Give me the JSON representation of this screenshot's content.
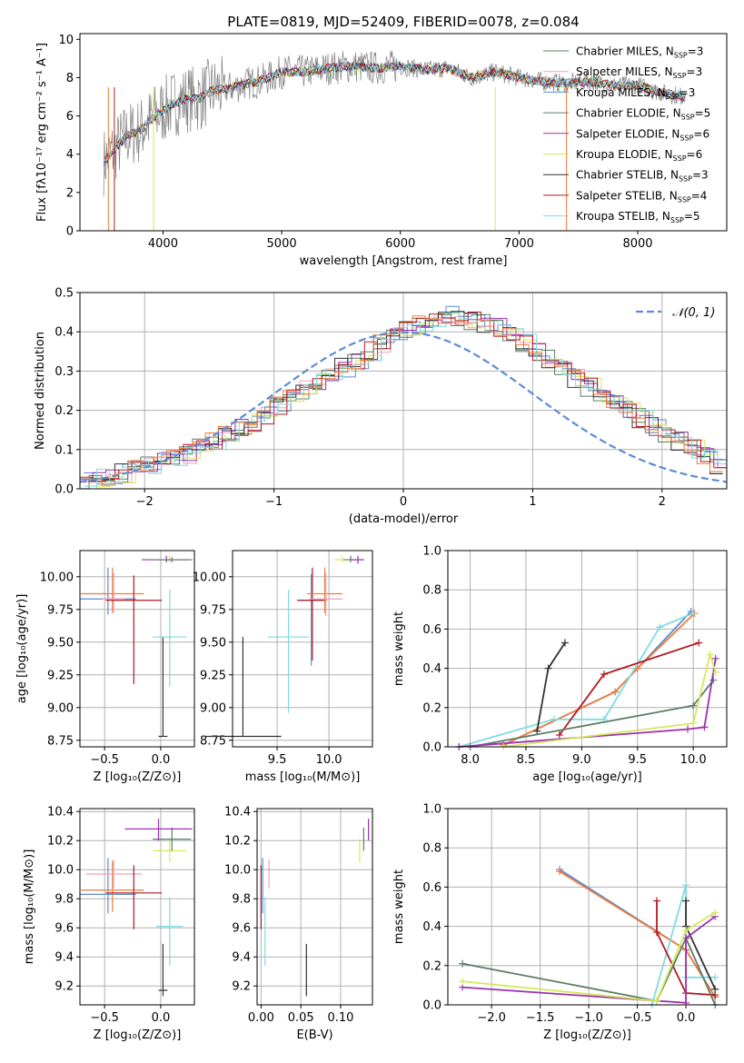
{
  "chart_data": [
    {
      "type": "line",
      "title": "PLATE=0819, MJD=52409, FIBERID=0078, z=0.084",
      "xlabel": "wavelength [Angstrom, rest frame]",
      "ylabel": "Flux [fλ10⁻¹⁷ erg cm⁻² s⁻¹ A⁻¹]",
      "xlim": [
        3300,
        8750
      ],
      "ylim": [
        0,
        10.3
      ],
      "xticks": [
        4000,
        5000,
        6000,
        7000,
        8000
      ],
      "yticks": [
        0,
        2,
        4,
        6,
        8,
        10
      ],
      "grid": false,
      "legend_position": "top-right",
      "series": [
        {
          "name": "Chabrier MILES, N_SSP=3",
          "color": "#5b7f62"
        },
        {
          "name": "Salpeter MILES, N_SSP=3",
          "color": "#f29fba"
        },
        {
          "name": "Kroupa MILES, N_SSP=3",
          "color": "#5b8cd6"
        },
        {
          "name": "Chabrier ELODIE, N_SSP=5",
          "color": "#5c7c66"
        },
        {
          "name": "Salpeter ELODIE, N_SSP=6",
          "color": "#9b30b0"
        },
        {
          "name": "Kroupa ELODIE, N_SSP=6",
          "color": "#d6e85a"
        },
        {
          "name": "Chabrier STELIB, N_SSP=3",
          "color": "#333333"
        },
        {
          "name": "Salpeter STELIB, N_SSP=4",
          "color": "#b0191e"
        },
        {
          "name": "Kroupa STELIB, N_SSP=5",
          "color": "#7fdbe3"
        }
      ],
      "data_curve": {
        "color": "#808080",
        "x": [
          3500,
          3600,
          3700,
          3800,
          3900,
          4000,
          4100,
          4200,
          4300,
          4400,
          4500,
          4600,
          4700,
          4800,
          4900,
          5000,
          5200,
          5400,
          5600,
          5800,
          6000,
          6200,
          6400,
          6600,
          6800,
          7000,
          7200,
          7400,
          7600,
          7800,
          8000,
          8200,
          8400
        ],
        "y": [
          3.6,
          4.3,
          5.0,
          5.2,
          5.8,
          6.3,
          6.7,
          6.9,
          6.9,
          7.3,
          7.4,
          7.5,
          7.7,
          7.8,
          8.0,
          8.3,
          8.3,
          8.5,
          8.6,
          8.5,
          8.6,
          8.4,
          8.5,
          8.0,
          8.3,
          8.0,
          7.8,
          7.7,
          7.8,
          7.6,
          7.6,
          7.2,
          7.0
        ]
      }
    },
    {
      "type": "line",
      "xlabel": "(data-model)/error",
      "ylabel": "Normed distribution",
      "xlim": [
        -2.5,
        2.5
      ],
      "ylim": [
        0,
        0.5
      ],
      "xticks": [
        -2,
        -1,
        0,
        1,
        2
      ],
      "yticks": [
        0.0,
        0.1,
        0.2,
        0.3,
        0.4,
        0.5
      ],
      "grid": true,
      "legend_position": "top-right",
      "legend": [
        "𝒩(0, 1)"
      ],
      "gaussian": {
        "mu": 0,
        "sigma": 1,
        "color": "#5b8cd6"
      },
      "histogram_bins": {
        "start": -2.5,
        "width": 0.1
      },
      "histogram_base": [
        0.02,
        0.03,
        0.03,
        0.04,
        0.05,
        0.06,
        0.07,
        0.08,
        0.09,
        0.11,
        0.12,
        0.14,
        0.16,
        0.17,
        0.19,
        0.21,
        0.23,
        0.25,
        0.27,
        0.29,
        0.31,
        0.33,
        0.35,
        0.37,
        0.39,
        0.41,
        0.42,
        0.43,
        0.44,
        0.44,
        0.43,
        0.42,
        0.41,
        0.39,
        0.37,
        0.35,
        0.33,
        0.3,
        0.28,
        0.26,
        0.24,
        0.22,
        0.2,
        0.18,
        0.16,
        0.14,
        0.12,
        0.1,
        0.08,
        0.06
      ],
      "histogram_colors": [
        "#5b7f62",
        "#f29fba",
        "#5b8cd6",
        "#5c7c66",
        "#9b30b0",
        "#d6e85a",
        "#333333",
        "#b0191e",
        "#7fdbe3",
        "#f07a3a"
      ]
    },
    {
      "type": "scatter",
      "xlabel": "Z [log₁₀(Z/Z⊙)]",
      "ylabel": "age  [log₁₀(age/yr)]",
      "xlim": [
        -0.72,
        0.3
      ],
      "ylim": [
        8.7,
        10.2
      ],
      "xticks": [
        -0.5,
        0.0
      ],
      "yticks": [
        8.75,
        9.0,
        9.25,
        9.5,
        9.75,
        10.0
      ],
      "grid": true,
      "points": [
        {
          "x": -0.47,
          "y": 9.83,
          "xerr": 0.25,
          "yerr": [
            0.12,
            0.24
          ],
          "color": "#5b8cd6"
        },
        {
          "x": -0.43,
          "y": 9.87,
          "xerr": 0.28,
          "yerr": [
            0.15,
            0.2
          ],
          "color": "#f07a3a"
        },
        {
          "x": -0.42,
          "y": 9.83,
          "xerr": 0.1,
          "yerr": [
            0.1,
            0.2
          ],
          "color": "#f29fba"
        },
        {
          "x": -0.24,
          "y": 9.82,
          "xerr": 0.25,
          "yerr": [
            0.64,
            0.19
          ],
          "color": "#b0191e"
        },
        {
          "x": 0.02,
          "y": 8.78,
          "xerr": 0.04,
          "yerr": [
            0.0,
            0.76
          ],
          "color": "#333333"
        },
        {
          "x": 0.08,
          "y": 9.54,
          "xerr": 0.15,
          "yerr": [
            0.38,
            0.36
          ],
          "color": "#7fdbe3"
        },
        {
          "x": 0.08,
          "y": 10.13,
          "xerr": 0.15,
          "yerr": [
            0.02,
            0.03
          ],
          "color": "#d6e85a"
        },
        {
          "x": 0.05,
          "y": 10.13,
          "xerr": 0.22,
          "yerr": [
            0.02,
            0.03
          ],
          "color": "#9b30b0"
        },
        {
          "x": 0.1,
          "y": 10.13,
          "xerr": 0.18,
          "yerr": [
            0.02,
            0.02
          ],
          "color": "#5c7c66"
        }
      ]
    },
    {
      "type": "scatter",
      "xlabel": "mass [log₁₀(M/M⊙)]",
      "ylabel": "",
      "xlim": [
        9.07,
        10.42
      ],
      "ylim": [
        8.7,
        10.2
      ],
      "xticks": [
        9.5,
        10.0
      ],
      "yticks": [
        8.75,
        9.0,
        9.25,
        9.5,
        9.75,
        10.0
      ],
      "grid": true,
      "points": [
        {
          "x": 9.17,
          "y": 8.78,
          "xerr": 0.37,
          "yerr": [
            0.0,
            0.76
          ],
          "color": "#333333"
        },
        {
          "x": 9.61,
          "y": 9.54,
          "xerr": 0.2,
          "yerr": [
            0.58,
            0.36
          ],
          "color": "#7fdbe3"
        },
        {
          "x": 9.83,
          "y": 9.82,
          "xerr": 0.14,
          "yerr": [
            0.5,
            0.2
          ],
          "color": "#5b8cd6"
        },
        {
          "x": 9.84,
          "y": 9.82,
          "xerr": 0.14,
          "yerr": [
            0.46,
            0.25
          ],
          "color": "#b0191e"
        },
        {
          "x": 9.96,
          "y": 9.87,
          "xerr": 0.17,
          "yerr": [
            0.15,
            0.2
          ],
          "color": "#f07a3a"
        },
        {
          "x": 9.97,
          "y": 9.83,
          "xerr": 0.16,
          "yerr": [
            0.13,
            0.2
          ],
          "color": "#f29fba"
        },
        {
          "x": 10.13,
          "y": 10.13,
          "xerr": 0.08,
          "yerr": [
            0.02,
            0.03
          ],
          "color": "#d6e85a"
        },
        {
          "x": 10.21,
          "y": 10.13,
          "xerr": 0.07,
          "yerr": [
            0.02,
            0.03
          ],
          "color": "#5c7c66"
        },
        {
          "x": 10.28,
          "y": 10.13,
          "xerr": 0.06,
          "yerr": [
            0.03,
            0.03
          ],
          "color": "#9b30b0"
        }
      ]
    },
    {
      "type": "line",
      "xlabel": "age  [log₁₀(age/yr)]",
      "ylabel": "mass weight",
      "xlim": [
        7.8,
        10.3
      ],
      "ylim": [
        0,
        1
      ],
      "xticks": [
        8.0,
        8.5,
        9.0,
        9.5,
        10.0
      ],
      "yticks": [
        0.0,
        0.2,
        0.4,
        0.6,
        0.8,
        1.0
      ],
      "grid": true,
      "series": [
        {
          "color": "#5b8cd6",
          "x": [
            8.3,
            9.3,
            9.5,
            9.98
          ],
          "y": [
            0.01,
            0.28,
            0.4,
            0.69
          ]
        },
        {
          "color": "#f07a3a",
          "x": [
            8.3,
            9.3,
            9.5,
            10.01
          ],
          "y": [
            0.01,
            0.28,
            0.4,
            0.68
          ]
        },
        {
          "color": "#7fdbe3",
          "x": [
            7.9,
            8.75,
            9.2,
            9.7,
            10.0
          ],
          "y": [
            0.0,
            0.14,
            0.14,
            0.61,
            0.68
          ]
        },
        {
          "color": "#b0191e",
          "x": [
            8.8,
            9.2,
            10.05
          ],
          "y": [
            0.06,
            0.37,
            0.53
          ]
        },
        {
          "color": "#333333",
          "x": [
            8.6,
            8.7,
            8.85
          ],
          "y": [
            0.08,
            0.4,
            0.53
          ]
        },
        {
          "color": "#5c7c66",
          "x": [
            8.0,
            10.0,
            10.18
          ],
          "y": [
            0.0,
            0.21,
            0.34
          ]
        },
        {
          "color": "#9b30b0",
          "x": [
            7.9,
            9.95,
            10.1,
            10.2
          ],
          "y": [
            0.0,
            0.09,
            0.1,
            0.45
          ]
        },
        {
          "color": "#d6e85a",
          "x": [
            8.3,
            10.0,
            10.15,
            10.2
          ],
          "y": [
            0.0,
            0.12,
            0.47,
            0.38
          ]
        }
      ]
    },
    {
      "type": "scatter",
      "xlabel": "Z [log₁₀(Z/Z⊙)]",
      "ylabel": "mass [log₁₀(M/M⊙)]",
      "xlim": [
        -0.72,
        0.3
      ],
      "ylim": [
        9.07,
        10.42
      ],
      "xticks": [
        -0.5,
        0.0
      ],
      "yticks": [
        9.2,
        9.4,
        9.6,
        9.8,
        10.0,
        10.2,
        10.4
      ],
      "grid": true,
      "points": [
        {
          "x": -0.47,
          "y": 9.83,
          "xerr": 0.25,
          "yerr": [
            0.13,
            0.25
          ],
          "color": "#5b8cd6"
        },
        {
          "x": -0.43,
          "y": 9.86,
          "xerr": 0.28,
          "yerr": [
            0.15,
            0.2
          ],
          "color": "#f07a3a"
        },
        {
          "x": -0.42,
          "y": 9.97,
          "xerr": 0.25,
          "yerr": [
            0.1,
            0.1
          ],
          "color": "#f29fba"
        },
        {
          "x": -0.24,
          "y": 9.84,
          "xerr": 0.25,
          "yerr": [
            0.25,
            0.19
          ],
          "color": "#b0191e"
        },
        {
          "x": 0.02,
          "y": 9.17,
          "xerr": 0.04,
          "yerr": [
            0.04,
            0.32
          ],
          "color": "#333333"
        },
        {
          "x": 0.08,
          "y": 9.61,
          "xerr": 0.12,
          "yerr": [
            0.27,
            0.2
          ],
          "color": "#7fdbe3"
        },
        {
          "x": 0.08,
          "y": 10.13,
          "xerr": 0.15,
          "yerr": [
            0.08,
            0.08
          ],
          "color": "#d6e85a"
        },
        {
          "x": 0.1,
          "y": 10.21,
          "xerr": 0.17,
          "yerr": [
            0.08,
            0.08
          ],
          "color": "#5c7c66"
        },
        {
          "x": -0.02,
          "y": 10.28,
          "xerr": 0.3,
          "yerr": [
            0.08,
            0.07
          ],
          "color": "#9b30b0"
        }
      ]
    },
    {
      "type": "scatter",
      "xlabel": "E(B-V)",
      "ylabel": "",
      "xlim": [
        -0.005,
        0.14
      ],
      "ylim": [
        9.07,
        10.42
      ],
      "xticks": [
        0.0,
        0.05,
        0.1
      ],
      "yticks": [
        9.2,
        9.4,
        9.6,
        9.8,
        10.0,
        10.2,
        10.4
      ],
      "grid": true,
      "points": [
        {
          "x": 0.0,
          "y": 9.84,
          "xerr": 0.0,
          "yerr": [
            0.25,
            0.19
          ],
          "color": "#b0191e"
        },
        {
          "x": 0.002,
          "y": 9.83,
          "xerr": 0.0,
          "yerr": [
            0.13,
            0.25
          ],
          "color": "#5b8cd6"
        },
        {
          "x": 0.005,
          "y": 9.61,
          "xerr": 0.0,
          "yerr": [
            0.27,
            0.2
          ],
          "color": "#7fdbe3"
        },
        {
          "x": 0.01,
          "y": 9.97,
          "xerr": 0.0,
          "yerr": [
            0.1,
            0.1
          ],
          "color": "#f29fba"
        },
        {
          "x": 0.057,
          "y": 9.17,
          "xerr": 0.0,
          "yerr": [
            0.04,
            0.32
          ],
          "color": "#333333"
        },
        {
          "x": 0.124,
          "y": 10.13,
          "xerr": 0.0,
          "yerr": [
            0.08,
            0.08
          ],
          "color": "#d6e85a"
        },
        {
          "x": 0.129,
          "y": 10.21,
          "xerr": 0.0,
          "yerr": [
            0.08,
            0.08
          ],
          "color": "#5c7c66"
        },
        {
          "x": 0.135,
          "y": 10.28,
          "xerr": 0.0,
          "yerr": [
            0.08,
            0.07
          ],
          "color": "#9b30b0"
        }
      ]
    },
    {
      "type": "line",
      "xlabel": "Z [log₁₀(Z/Z⊙)]",
      "ylabel": "mass weight",
      "xlim": [
        -2.45,
        0.42
      ],
      "ylim": [
        0,
        1
      ],
      "xticks": [
        -2.0,
        -1.5,
        -1.0,
        -0.5,
        0.0
      ],
      "yticks": [
        0.0,
        0.2,
        0.4,
        0.6,
        0.8,
        1.0
      ],
      "grid": true,
      "series": [
        {
          "color": "#5b8cd6",
          "x": [
            -1.3,
            0.0,
            0.3
          ],
          "y": [
            0.69,
            0.28,
            0.04
          ]
        },
        {
          "color": "#f07a3a",
          "x": [
            -1.3,
            0.0,
            0.3
          ],
          "y": [
            0.68,
            0.28,
            0.04
          ]
        },
        {
          "color": "#7fdbe3",
          "x": [
            -0.35,
            0.0,
            0.0,
            0.3
          ],
          "y": [
            0.0,
            0.61,
            0.14,
            0.14
          ]
        },
        {
          "color": "#b0191e",
          "x": [
            -0.3,
            -0.3,
            0.0,
            0.3
          ],
          "y": [
            0.53,
            0.37,
            0.06,
            0.05
          ]
        },
        {
          "color": "#333333",
          "x": [
            0.0,
            0.0,
            0.3
          ],
          "y": [
            0.53,
            0.4,
            0.08
          ]
        },
        {
          "color": "#5c7c66",
          "x": [
            -2.3,
            -0.3,
            0.0,
            0.3
          ],
          "y": [
            0.21,
            0.02,
            0.34,
            0.0
          ]
        },
        {
          "color": "#9b30b0",
          "x": [
            -2.3,
            0.0,
            0.0,
            0.3
          ],
          "y": [
            0.09,
            0.01,
            0.34,
            0.45
          ]
        },
        {
          "color": "#d6e85a",
          "x": [
            -2.3,
            -0.3,
            0.0,
            0.3
          ],
          "y": [
            0.12,
            0.02,
            0.38,
            0.47
          ]
        }
      ]
    }
  ]
}
